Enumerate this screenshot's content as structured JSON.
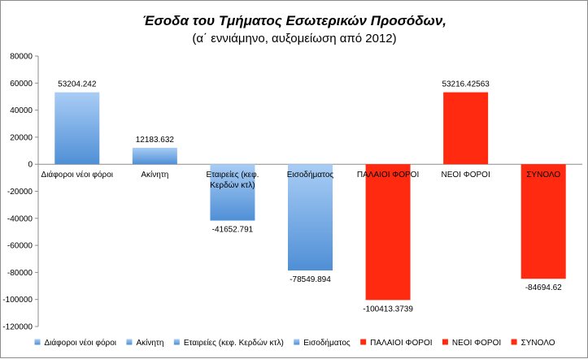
{
  "chart_data": {
    "type": "bar",
    "title": "Έσοδα του Τμήματος Εσωτερικών Προσόδων,",
    "subtitle": "(α΄ εννιάμηνο, αυξομείωση από 2012)",
    "xlabel": "",
    "ylabel": "",
    "ylim": [
      -120000,
      80000
    ],
    "yticks": [
      80000,
      60000,
      40000,
      20000,
      0,
      -20000,
      -40000,
      -60000,
      -80000,
      -100000,
      -120000
    ],
    "grid": false,
    "legend_position": "bottom",
    "categories": [
      "Διάφοροι νέοι φόροι",
      "Ακίνητη",
      "Εταιρείες (κεφ. Κερδών κτλ)",
      "Εισοδήματος",
      "ΠΑΛΑΙΟΙ ΦΟΡΟΙ",
      "ΝΕΟΙ ΦΟΡΟΙ",
      "ΣΥΝΟΛΟ"
    ],
    "category_label_lines": [
      [
        "Διάφοροι νέοι φόροι"
      ],
      [
        "Ακίνητη"
      ],
      [
        "Εταιρείες (κεφ.",
        "Κερδών κτλ)"
      ],
      [
        "Εισοδήματος"
      ],
      [
        "ΠΑΛΑΙΟΙ ΦΟΡΟΙ"
      ],
      [
        "ΝΕΟΙ ΦΟΡΟΙ"
      ],
      [
        "ΣΥΝΟΛΟ"
      ]
    ],
    "values": [
      53204.242,
      12183.632,
      -41652.791,
      -78549.894,
      -100413.3739,
      53216.42563,
      -84694.62
    ],
    "data_labels": [
      "53204.242",
      "12183.632",
      "-41652.791",
      "-78549.894",
      "-100413.3739",
      "53216.42563",
      "-84694.62"
    ],
    "series": [
      {
        "name": "Διάφοροι νέοι φόροι",
        "style": "blue"
      },
      {
        "name": "Ακίνητη",
        "style": "blue"
      },
      {
        "name": "Εταιρείες (κεφ. Κερδών κτλ)",
        "style": "blue"
      },
      {
        "name": "Εισοδήματος",
        "style": "blue"
      },
      {
        "name": "ΠΑΛΑΙΟΙ ΦΟΡΟΙ",
        "style": "red"
      },
      {
        "name": "ΝΕΟΙ ΦΟΡΟΙ",
        "style": "red"
      },
      {
        "name": "ΣΥΝΟΛΟ",
        "style": "red"
      }
    ],
    "colors": {
      "blue_light": "#a9cdf5",
      "blue_dark": "#4f8fd6",
      "red": "#ff2a0f",
      "axis": "#8c8c8c"
    }
  }
}
